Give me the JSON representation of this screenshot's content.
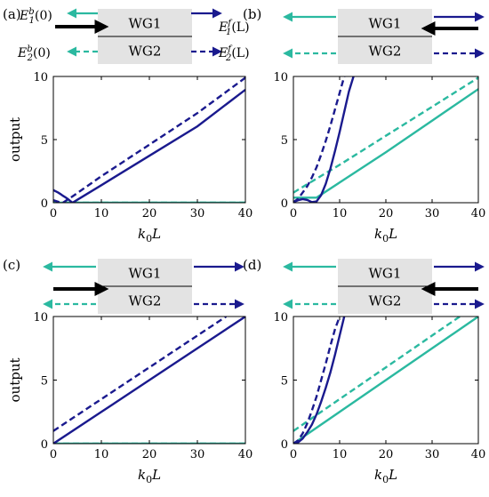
{
  "colors": {
    "teal": "#2bb9a0",
    "navy": "#1a1a8e",
    "black": "#000000",
    "waveguide_fill": "#e3e3e3",
    "frame": "#000000"
  },
  "waveguides": {
    "wg1": "WG1",
    "wg2": "WG2"
  },
  "field_labels": {
    "E1b": "E_1^b(0)",
    "E2b": "E_2^b(0)",
    "E1f": "E_1^f(L)",
    "E2f": "E_2^f(L)"
  },
  "chart_data": [
    {
      "type": "line",
      "panel": "(a)",
      "input": "WG1 left",
      "xlabel": "k₀L",
      "ylabel": "output",
      "xlim": [
        0,
        40
      ],
      "ylim": [
        0,
        10
      ],
      "xticks": [
        0,
        10,
        20,
        30,
        40
      ],
      "yticks": [
        0,
        5,
        10
      ],
      "grid": false,
      "series": [
        {
          "style": "solid",
          "color": "teal",
          "x": [
            0,
            40
          ],
          "y": [
            0,
            0
          ]
        },
        {
          "style": "dashed",
          "color": "teal",
          "x": [
            0,
            40
          ],
          "y": [
            0,
            0
          ]
        },
        {
          "style": "solid",
          "color": "navy",
          "x": [
            0,
            0.5,
            1,
            1.5,
            2,
            2.5,
            3,
            3.5,
            4,
            5,
            10,
            20,
            30,
            40
          ],
          "y": [
            1.0,
            0.9,
            0.8,
            0.68,
            0.55,
            0.43,
            0.3,
            0.15,
            0.0,
            0.23,
            1.39,
            3.72,
            6.05,
            8.95
          ]
        },
        {
          "style": "dashed",
          "color": "navy",
          "x": [
            0,
            1,
            2,
            3,
            4,
            10,
            20,
            30,
            40
          ],
          "y": [
            0.2,
            0.08,
            0.0,
            0.25,
            0.5,
            2.1,
            4.6,
            7.1,
            9.9
          ]
        }
      ]
    },
    {
      "type": "line",
      "panel": "(b)",
      "input": "both ends",
      "xlabel": "k₀L",
      "ylabel": "",
      "xlim": [
        0,
        40
      ],
      "ylim": [
        0,
        10
      ],
      "xticks": [
        0,
        10,
        20,
        30,
        40
      ],
      "yticks": [
        0,
        5,
        10
      ],
      "grid": false,
      "series": [
        {
          "style": "solid",
          "color": "teal",
          "x": [
            0,
            5,
            10,
            20,
            30,
            40
          ],
          "y": [
            0.4,
            0.4,
            1.6,
            4.0,
            6.5,
            9.0
          ]
        },
        {
          "style": "dashed",
          "color": "teal",
          "x": [
            0,
            10,
            20,
            30,
            40
          ],
          "y": [
            0.8,
            3.0,
            5.3,
            7.6,
            9.9
          ]
        },
        {
          "style": "solid",
          "color": "navy",
          "x": [
            0,
            1,
            2,
            3,
            4,
            5,
            6,
            7,
            8,
            9,
            10,
            11,
            12,
            13
          ],
          "y": [
            0.05,
            0.2,
            0.28,
            0.22,
            0.05,
            0.1,
            0.6,
            1.5,
            2.7,
            4.1,
            5.6,
            7.2,
            8.8,
            10.0
          ]
        },
        {
          "style": "dashed",
          "color": "navy",
          "x": [
            0,
            1,
            2,
            3,
            4,
            5,
            6,
            7,
            8,
            9,
            10,
            11
          ],
          "y": [
            0.05,
            0.3,
            0.8,
            1.3,
            2.0,
            2.8,
            3.8,
            4.9,
            6.1,
            7.4,
            8.7,
            10.0
          ]
        }
      ]
    },
    {
      "type": "line",
      "panel": "(c)",
      "input": "WG2 left",
      "xlabel": "k₀L",
      "ylabel": "output",
      "xlim": [
        0,
        40
      ],
      "ylim": [
        0,
        10
      ],
      "xticks": [
        0,
        10,
        20,
        30,
        40
      ],
      "yticks": [
        0,
        5,
        10
      ],
      "grid": false,
      "series": [
        {
          "style": "solid",
          "color": "teal",
          "x": [
            0,
            40
          ],
          "y": [
            0,
            0
          ]
        },
        {
          "style": "dashed",
          "color": "teal",
          "x": [
            0,
            40
          ],
          "y": [
            0,
            0
          ]
        },
        {
          "style": "solid",
          "color": "navy",
          "x": [
            0,
            10,
            20,
            30,
            40
          ],
          "y": [
            0,
            2.5,
            5.0,
            7.5,
            10.0
          ]
        },
        {
          "style": "dashed",
          "color": "navy",
          "x": [
            0,
            10,
            20,
            30,
            36
          ],
          "y": [
            1.0,
            3.5,
            6.0,
            8.5,
            10.0
          ]
        }
      ]
    },
    {
      "type": "line",
      "panel": "(d)",
      "input": "both ends",
      "xlabel": "k₀L",
      "ylabel": "",
      "xlim": [
        0,
        40
      ],
      "ylim": [
        0,
        10
      ],
      "xticks": [
        0,
        10,
        20,
        30,
        40
      ],
      "yticks": [
        0,
        5,
        10
      ],
      "grid": false,
      "series": [
        {
          "style": "solid",
          "color": "teal",
          "x": [
            0,
            10,
            20,
            30,
            40
          ],
          "y": [
            0,
            2.5,
            5.0,
            7.5,
            10.0
          ]
        },
        {
          "style": "dashed",
          "color": "teal",
          "x": [
            0,
            10,
            20,
            30,
            36
          ],
          "y": [
            1.0,
            3.5,
            6.0,
            8.5,
            10.0
          ]
        },
        {
          "style": "solid",
          "color": "navy",
          "x": [
            0,
            1,
            2,
            3,
            4,
            5,
            6,
            7,
            8,
            9,
            10,
            11
          ],
          "y": [
            0,
            0.1,
            0.4,
            0.9,
            1.5,
            2.3,
            3.3,
            4.4,
            5.6,
            7.0,
            8.5,
            10.0
          ]
        },
        {
          "style": "dashed",
          "color": "navy",
          "x": [
            0,
            1,
            2,
            3,
            4,
            5,
            6,
            7,
            8,
            9,
            10
          ],
          "y": [
            0,
            0.25,
            0.8,
            1.6,
            2.6,
            3.7,
            5.0,
            6.3,
            7.7,
            9.0,
            10.0
          ]
        }
      ]
    }
  ]
}
